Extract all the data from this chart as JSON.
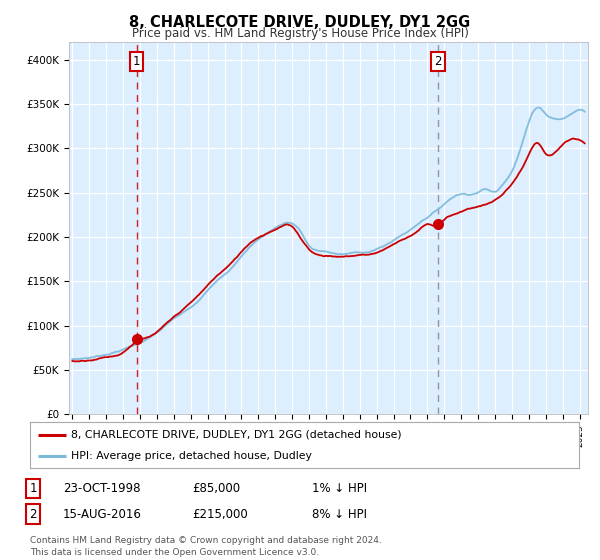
{
  "title": "8, CHARLECOTE DRIVE, DUDLEY, DY1 2GG",
  "subtitle": "Price paid vs. HM Land Registry's House Price Index (HPI)",
  "background_color": "#ddeeff",
  "plot_bg_color": "#ddeeff",
  "fig_bg_color": "#ffffff",
  "sale1_date_num": 1998.81,
  "sale1_price": 85000,
  "sale2_date_num": 2016.62,
  "sale2_price": 215000,
  "xmin": 1994.8,
  "xmax": 2025.5,
  "ymin": 0,
  "ymax": 420000,
  "hpi_color": "#7ab8d9",
  "price_color": "#cc0000",
  "vline1_color": "#cc0000",
  "vline2_color": "#888888",
  "grid_color": "#ffffff",
  "legend_label_price": "8, CHARLECOTE DRIVE, DUDLEY, DY1 2GG (detached house)",
  "legend_label_hpi": "HPI: Average price, detached house, Dudley",
  "footer": "Contains HM Land Registry data © Crown copyright and database right 2024.\nThis data is licensed under the Open Government Licence v3.0.",
  "table_row1": [
    "1",
    "23-OCT-1998",
    "£85,000",
    "1% ↓ HPI"
  ],
  "table_row2": [
    "2",
    "15-AUG-2016",
    "£215,000",
    "8% ↓ HPI"
  ],
  "yticks": [
    0,
    50000,
    100000,
    150000,
    200000,
    250000,
    300000,
    350000,
    400000
  ],
  "ytick_labels": [
    "£0",
    "£50K",
    "£100K",
    "£150K",
    "£200K",
    "£250K",
    "£300K",
    "£350K",
    "£400K"
  ],
  "hpi_waypoints_x": [
    1995.0,
    1996.0,
    1997.0,
    1998.0,
    1999.0,
    2000.0,
    2001.0,
    2002.5,
    2003.5,
    2004.5,
    2005.5,
    2006.5,
    2007.3,
    2007.8,
    2008.5,
    2009.0,
    2009.5,
    2010.0,
    2010.5,
    2011.0,
    2011.5,
    2012.0,
    2012.5,
    2013.0,
    2013.5,
    2014.0,
    2014.5,
    2015.0,
    2015.5,
    2016.0,
    2016.5,
    2017.0,
    2017.5,
    2018.0,
    2018.5,
    2019.0,
    2019.5,
    2020.0,
    2020.5,
    2021.0,
    2021.5,
    2022.0,
    2022.3,
    2022.6,
    2023.0,
    2023.5,
    2024.0,
    2024.5,
    2025.0,
    2025.3
  ],
  "hpi_waypoints_y": [
    62000,
    64000,
    68000,
    74000,
    82000,
    93000,
    108000,
    128000,
    150000,
    168000,
    190000,
    205000,
    215000,
    218000,
    208000,
    192000,
    186000,
    185000,
    183000,
    182000,
    183000,
    184000,
    185000,
    188000,
    192000,
    198000,
    204000,
    210000,
    218000,
    225000,
    232000,
    240000,
    248000,
    252000,
    252000,
    255000,
    258000,
    255000,
    265000,
    280000,
    305000,
    335000,
    348000,
    352000,
    345000,
    340000,
    340000,
    345000,
    350000,
    348000
  ],
  "price_waypoints_x": [
    1995.0,
    1996.0,
    1997.0,
    1998.0,
    1998.81,
    1999.5,
    2000.5,
    2001.5,
    2002.5,
    2003.5,
    2004.5,
    2005.5,
    2006.5,
    2007.3,
    2007.8,
    2008.5,
    2009.0,
    2009.5,
    2010.0,
    2011.0,
    2012.0,
    2013.0,
    2014.0,
    2015.0,
    2015.5,
    2016.0,
    2016.62,
    2017.0,
    2017.5,
    2018.0,
    2019.0,
    2020.0,
    2021.0,
    2022.0,
    2022.5,
    2023.0,
    2023.5,
    2024.0,
    2024.5,
    2025.3
  ],
  "price_waypoints_y": [
    60000,
    62000,
    66000,
    72000,
    85000,
    89000,
    102000,
    118000,
    135000,
    155000,
    172000,
    193000,
    205000,
    213000,
    215000,
    200000,
    188000,
    182000,
    181000,
    180000,
    182000,
    185000,
    195000,
    205000,
    212000,
    218000,
    215000,
    222000,
    228000,
    232000,
    238000,
    245000,
    263000,
    295000,
    308000,
    295000,
    295000,
    305000,
    310000,
    305000
  ]
}
